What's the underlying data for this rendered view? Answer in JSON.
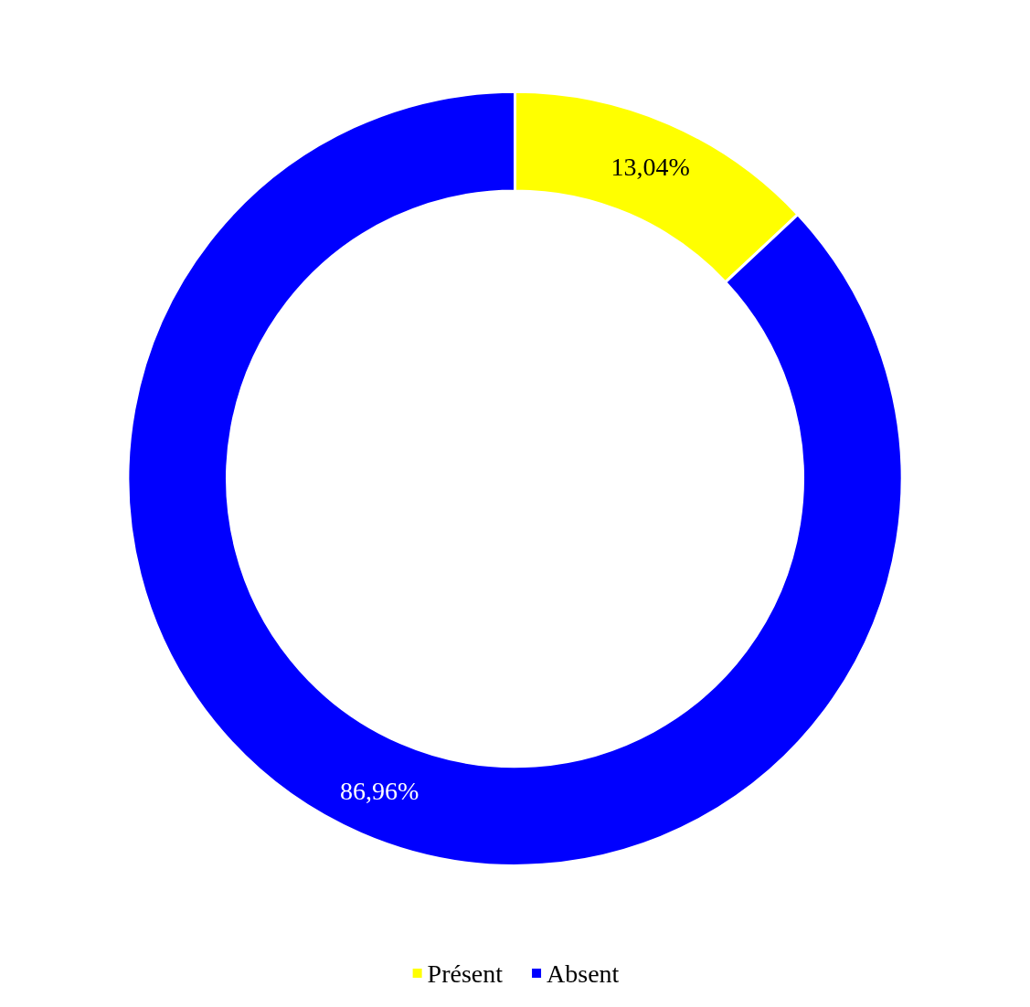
{
  "chart_data": {
    "type": "donut",
    "categories": [
      "Présent",
      "Absent"
    ],
    "values": [
      13.04,
      86.96
    ],
    "colors": [
      "#ffff00",
      "#0000ff"
    ],
    "value_labels": [
      "13,04%",
      "86,96%"
    ],
    "legend": "bottom"
  }
}
